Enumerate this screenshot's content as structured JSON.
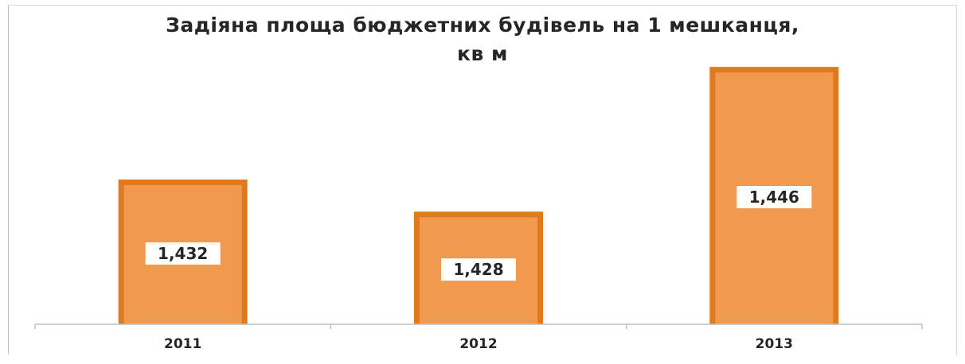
{
  "chart_data": {
    "type": "bar",
    "title": "Задіяна площа бюджетних будівель на 1 мешканця, кв м",
    "categories": [
      "2011",
      "2012",
      "2013"
    ],
    "values": [
      1.432,
      1.428,
      1.446
    ],
    "data_labels": [
      "1,432",
      "1,428",
      "1,446"
    ],
    "xlabel": "",
    "ylabel": "",
    "ylim": [
      1.414,
      1.4475
    ],
    "grid": false,
    "legend": "none",
    "colors": {
      "bar_fill": "#f0994f",
      "bar_border": "#e07a1f",
      "axis": "#bfbfbf",
      "text": "#262626"
    }
  }
}
